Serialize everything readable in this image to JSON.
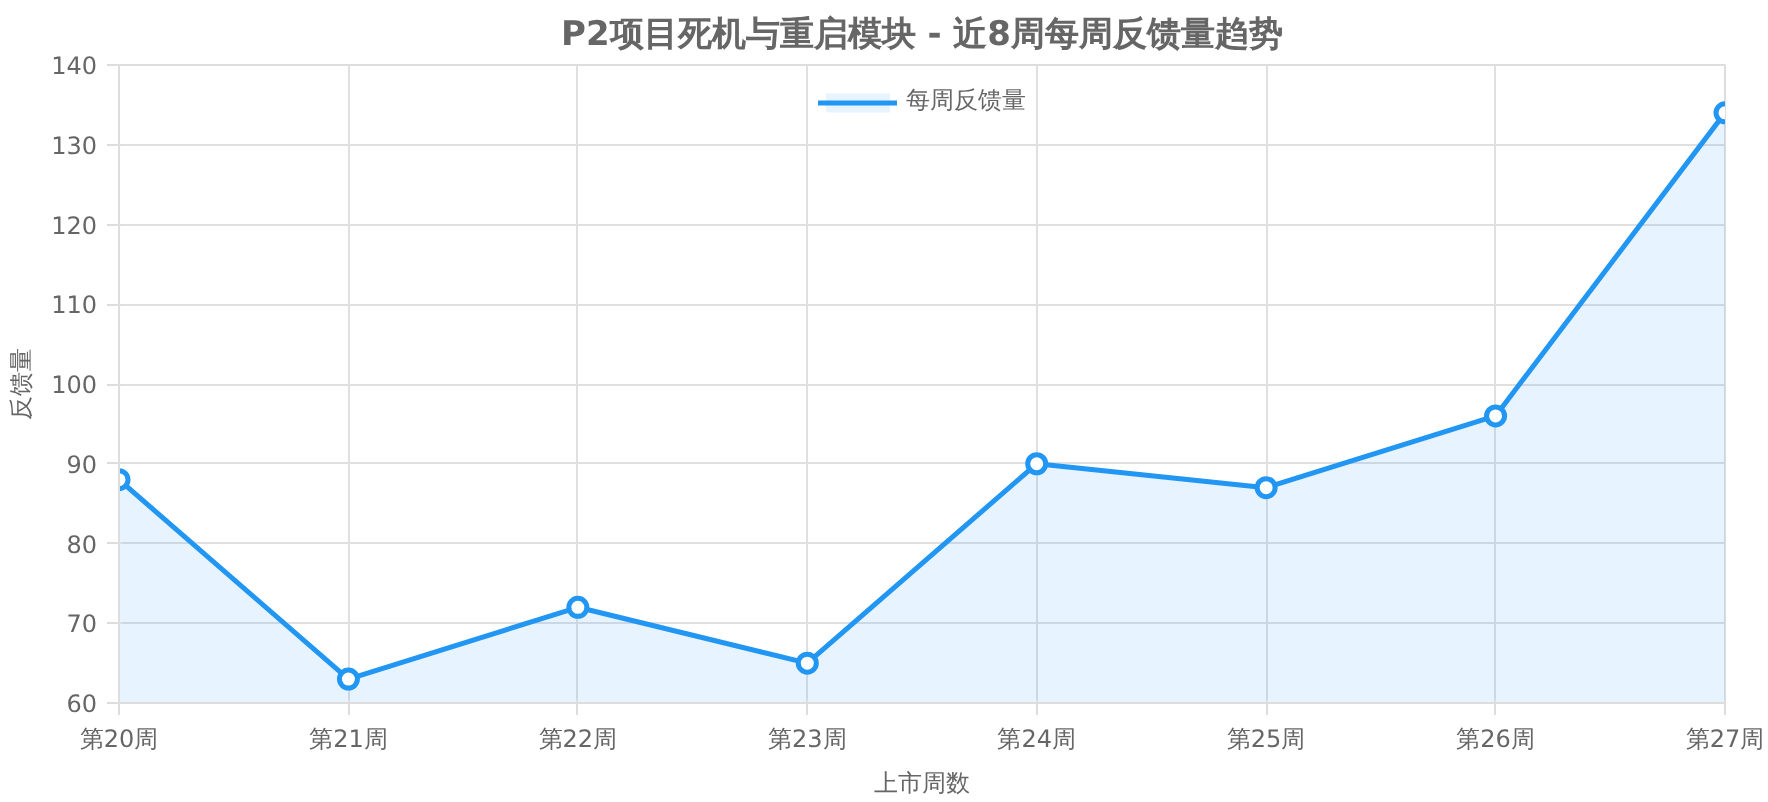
{
  "chart_data": {
    "type": "area",
    "title": "P2项目死机与重启模块 - 近8周每周反馈量趋势",
    "xlabel": "上市周数",
    "ylabel": "反馈量",
    "categories": [
      "第20周",
      "第21周",
      "第22周",
      "第23周",
      "第24周",
      "第25周",
      "第26周",
      "第27周"
    ],
    "series": [
      {
        "name": "每周反馈量",
        "color": "#2196f3",
        "values": [
          88,
          63,
          72,
          65,
          90,
          87,
          96,
          134
        ]
      }
    ],
    "ylim": [
      60,
      140
    ],
    "yticks": [
      60,
      70,
      80,
      90,
      100,
      110,
      120,
      130,
      140
    ],
    "grid": true,
    "legend": "top",
    "marker": "circle",
    "line_style": "solid"
  }
}
